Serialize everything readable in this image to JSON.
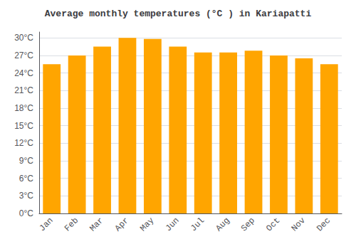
{
  "chart_data": {
    "type": "bar",
    "title": "Average monthly temperatures (°C ) in Kariapatti",
    "categories": [
      "Jan",
      "Feb",
      "Mar",
      "Apr",
      "May",
      "Jun",
      "Jul",
      "Aug",
      "Sep",
      "Oct",
      "Nov",
      "Dec"
    ],
    "values": [
      25.5,
      27.0,
      28.5,
      30.0,
      29.8,
      28.5,
      27.5,
      27.5,
      27.8,
      27.0,
      26.5,
      25.5
    ],
    "color": "#FFA500",
    "ylim": [
      0,
      31
    ],
    "yticks": [
      {
        "value": 0,
        "label": "0°C"
      },
      {
        "value": 3,
        "label": "3°C"
      },
      {
        "value": 6,
        "label": "6°C"
      },
      {
        "value": 9,
        "label": "9°C"
      },
      {
        "value": 12,
        "label": "12°C"
      },
      {
        "value": 15,
        "label": "15°C"
      },
      {
        "value": 18,
        "label": "18°C"
      },
      {
        "value": 21,
        "label": "21°C"
      },
      {
        "value": 24,
        "label": "24°C"
      },
      {
        "value": 27,
        "label": "27°C"
      },
      {
        "value": 30,
        "label": "30°C"
      }
    ],
    "grid": true
  }
}
